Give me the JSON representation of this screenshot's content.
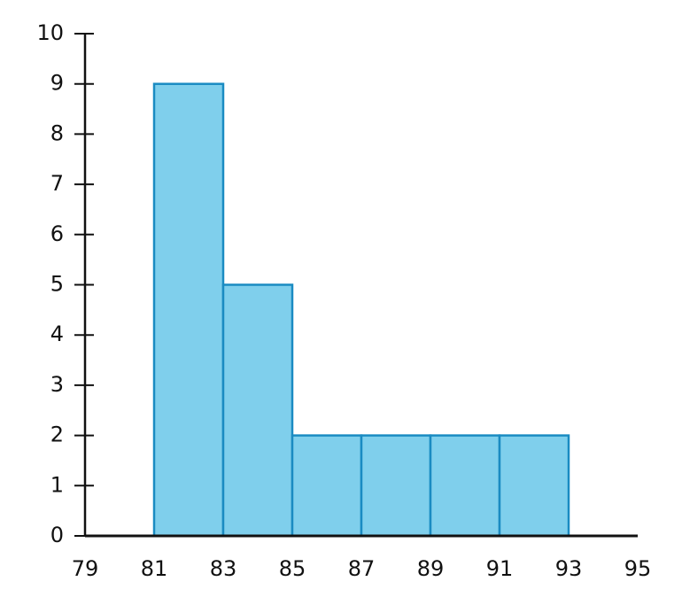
{
  "chart_data": {
    "type": "histogram",
    "bins": [
      81,
      83,
      85,
      87,
      89,
      91,
      93
    ],
    "counts": [
      9,
      5,
      2,
      2,
      2,
      2
    ],
    "color": "#7fcfec",
    "edge_color": "#1a8bc2",
    "xlim": [
      79,
      95
    ],
    "xticks": [
      79,
      81,
      83,
      85,
      87,
      89,
      91,
      93,
      95
    ],
    "ylim": [
      0,
      10
    ],
    "yticks": [
      0,
      1,
      2,
      3,
      4,
      5,
      6,
      7,
      8,
      9,
      10
    ]
  }
}
